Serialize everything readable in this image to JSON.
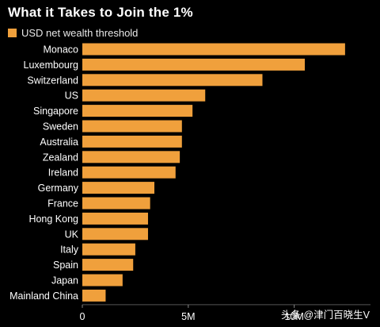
{
  "header": {
    "title": "What it Takes to Join the 1%"
  },
  "colors": {
    "bar": "#F0A03C",
    "background": "#000000",
    "text": "#FFFFFF"
  },
  "chart_data": {
    "type": "bar",
    "orientation": "horizontal",
    "categories": [
      "Monaco",
      "Luxembourg",
      "Switzerland",
      "US",
      "Singapore",
      "Sweden",
      "Australia",
      "New Zealand",
      "Ireland",
      "Germany",
      "France",
      "Hong Kong",
      "UK",
      "Italy",
      "Spain",
      "Japan",
      "Mainland China"
    ],
    "category_labels": [
      "Monaco",
      "Luxembourg",
      "Switzerland",
      "US",
      "Singapore",
      "Sweden",
      "Australia",
      "Zealand",
      "Ireland",
      "Germany",
      "France",
      "Hong Kong",
      "UK",
      "Italy",
      "Spain",
      "Japan",
      "Mainland China"
    ],
    "series": [
      {
        "name": "USD net wealth threshold",
        "values": [
          12.4,
          10.5,
          8.5,
          5.8,
          5.2,
          4.7,
          4.7,
          4.6,
          4.4,
          3.4,
          3.2,
          3.1,
          3.1,
          2.5,
          2.4,
          1.9,
          1.1
        ]
      }
    ],
    "xlim": [
      0,
      13.6
    ],
    "xticks": [
      0,
      5,
      10
    ],
    "xtick_labels": [
      "0",
      "5M",
      "10M"
    ],
    "grid": false,
    "legend": "top-left"
  },
  "watermark": {
    "text": "头条 @津门百晓生V"
  }
}
